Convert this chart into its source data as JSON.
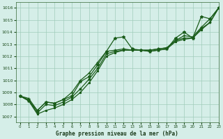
{
  "title": "Graphe pression niveau de la mer (hPa)",
  "bg_color": "#d5eee8",
  "grid_color": "#b0d8cc",
  "line_color": "#1a5c1a",
  "xlim": [
    -0.5,
    23
  ],
  "ylim": [
    1006.5,
    1016.5
  ],
  "yticks": [
    1007,
    1008,
    1009,
    1010,
    1011,
    1012,
    1013,
    1014,
    1015,
    1016
  ],
  "xticks": [
    0,
    1,
    2,
    3,
    4,
    5,
    6,
    7,
    8,
    9,
    10,
    11,
    12,
    13,
    14,
    15,
    16,
    17,
    18,
    19,
    20,
    21,
    22,
    23
  ],
  "series_wiggly": [
    1008.7,
    1008.3,
    1007.5,
    1008.2,
    1008.1,
    1008.4,
    1008.7,
    1009.9,
    1010.3,
    1011.3,
    1012.4,
    1013.5,
    1013.6,
    1012.6,
    1012.5,
    1012.4,
    1012.5,
    1012.6,
    1013.5,
    1014.0,
    1013.5,
    1015.3,
    1015.1,
    1016.0
  ],
  "series_smooth1": [
    1008.7,
    1008.5,
    1007.5,
    1008.2,
    1008.1,
    1008.4,
    1009.0,
    1010.0,
    1010.6,
    1011.5,
    1012.4,
    1012.5,
    1012.6,
    1012.5,
    1012.5,
    1012.5,
    1012.6,
    1012.7,
    1013.3,
    1013.7,
    1013.6,
    1014.4,
    1015.1,
    1016.0
  ],
  "series_smooth2": [
    1008.7,
    1008.4,
    1007.3,
    1008.0,
    1007.9,
    1008.2,
    1008.6,
    1009.3,
    1010.1,
    1011.0,
    1012.2,
    1012.4,
    1012.5,
    1012.5,
    1012.5,
    1012.5,
    1012.6,
    1012.7,
    1013.3,
    1013.5,
    1013.5,
    1014.3,
    1014.8,
    1016.0
  ],
  "series_lower": [
    1008.7,
    1008.3,
    1007.2,
    1007.5,
    1007.7,
    1008.0,
    1008.4,
    1009.0,
    1009.8,
    1010.8,
    1012.0,
    1012.3,
    1012.5,
    1012.5,
    1012.5,
    1012.4,
    1012.5,
    1012.6,
    1013.2,
    1013.4,
    1013.5,
    1014.2,
    1014.8,
    1016.0
  ]
}
